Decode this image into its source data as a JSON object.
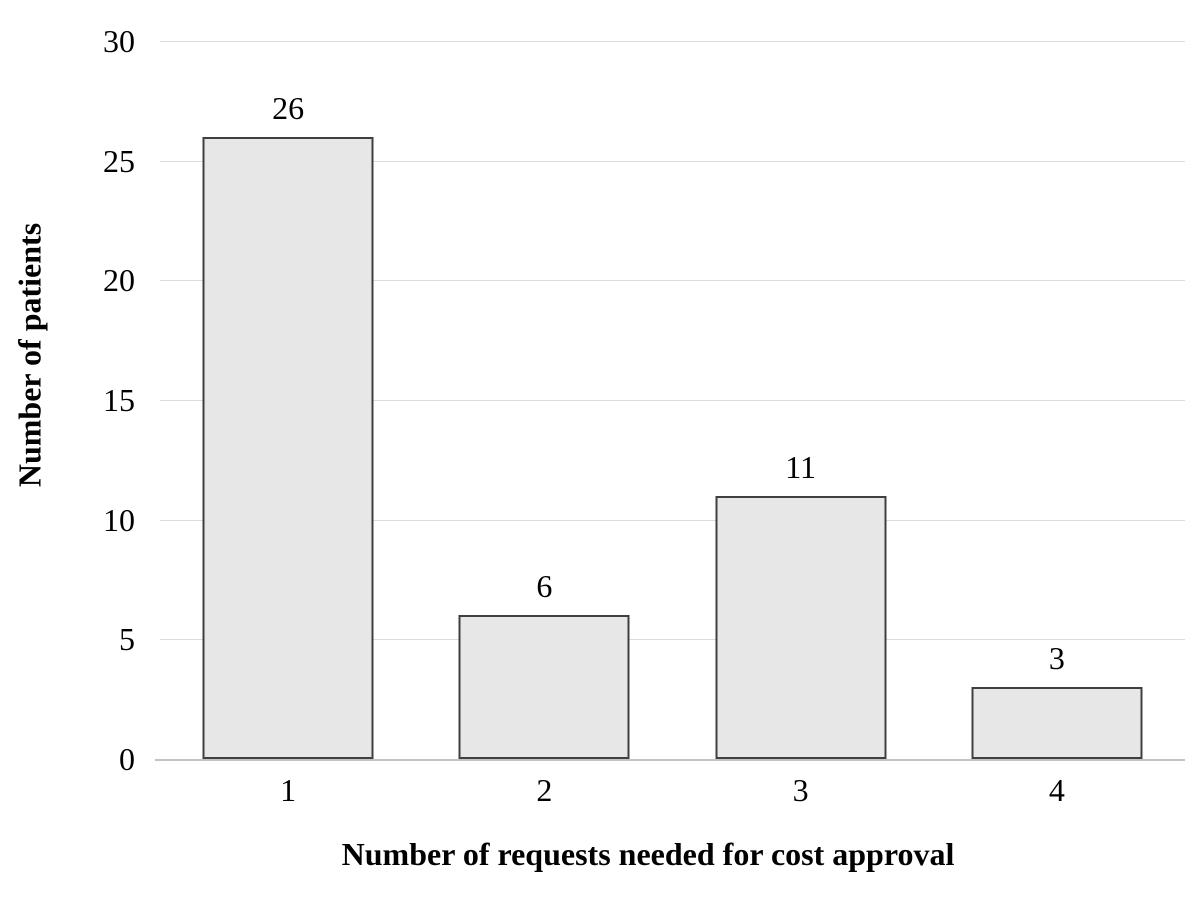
{
  "chart_data": {
    "type": "bar",
    "title": "",
    "xlabel": "Number of requests needed for cost approval",
    "ylabel": "Number of patients",
    "categories": [
      "1",
      "2",
      "3",
      "4"
    ],
    "values": [
      26,
      6,
      11,
      3
    ],
    "bar_labels": [
      "26",
      "6",
      "11",
      "3"
    ],
    "ylim": [
      0,
      30
    ],
    "yticks": [
      0,
      5,
      10,
      15,
      20,
      25,
      30
    ],
    "ytick_labels": [
      "0",
      "5",
      "10",
      "15",
      "20",
      "25",
      "30"
    ],
    "grid": "horizontal-only",
    "legend": "none",
    "colors": {
      "bar_fill": "#e8e7e7",
      "bar_border": "#3f3f3f",
      "gridline": "#dcdcdc",
      "axis_line": "#c3c3c3",
      "text": "#000000",
      "background": "#ffffff"
    }
  }
}
